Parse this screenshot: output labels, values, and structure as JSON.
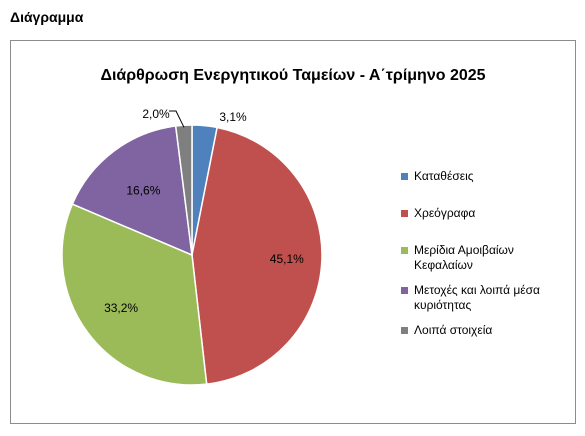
{
  "page": {
    "heading": "Διάγραμμα"
  },
  "chart_data": {
    "type": "pie",
    "title": "Διάρθρωση Ενεργητικού Ταμείων - Α΄τρίμηνο 2025",
    "legend_position": "right",
    "slices": [
      {
        "label": "Καταθέσεις",
        "value": 3.1,
        "display": "3,1%",
        "color": "#4f81bd"
      },
      {
        "label": "Χρεόγραφα",
        "value": 45.1,
        "display": "45,1%",
        "color": "#c0504d"
      },
      {
        "label": "Μερίδια Αμοιβαίων Κεφαλαίων",
        "value": 33.2,
        "display": "33,2%",
        "color": "#9bbb59"
      },
      {
        "label": "Μετοχές και λοιπά μέσα κυριότητας",
        "value": 16.6,
        "display": "16,6%",
        "color": "#8064a2"
      },
      {
        "label": "Λοιπά στοιχεία",
        "value": 2.0,
        "display": "2,0%",
        "color": "#7f7f7f"
      }
    ]
  }
}
